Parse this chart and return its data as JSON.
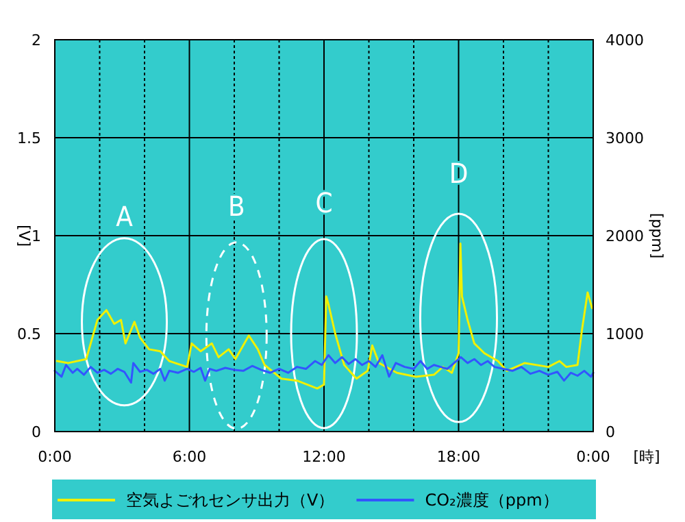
{
  "chart_data": {
    "type": "line",
    "xlabel": "[時]",
    "ylabel": "[V]",
    "y2label": "[ppm]",
    "xlim": [
      0,
      24
    ],
    "xticks": [
      {
        "value": 0,
        "label": "0:00"
      },
      {
        "value": 2,
        "label": null
      },
      {
        "value": 4,
        "label": null
      },
      {
        "value": 6,
        "label": "6:00"
      },
      {
        "value": 8,
        "label": null
      },
      {
        "value": 10,
        "label": null
      },
      {
        "value": 12,
        "label": "12:00"
      },
      {
        "value": 14,
        "label": null
      },
      {
        "value": 16,
        "label": null
      },
      {
        "value": 18,
        "label": "18:00"
      },
      {
        "value": 20,
        "label": null
      },
      {
        "value": 22,
        "label": null
      },
      {
        "value": 24,
        "label": "0:00"
      }
    ],
    "ylim": [
      0,
      2
    ],
    "yticks": [
      0,
      0.5,
      1,
      1.5,
      2
    ],
    "y2lim": [
      0,
      4000
    ],
    "y2ticks": [
      0,
      1000,
      2000,
      3000,
      4000
    ],
    "grid": true,
    "legend": "bottom",
    "annotations": [
      "A",
      "B",
      "C",
      "D"
    ],
    "series": [
      {
        "name": "空気よごれセンサ出力（V）",
        "color": "#f0f000",
        "x": [
          0.1,
          0.6,
          1.4,
          1.9,
          2.3,
          2.65,
          2.95,
          3.15,
          3.55,
          3.8,
          4.2,
          4.7,
          5.1,
          5.9,
          6.1,
          6.5,
          7.0,
          7.3,
          7.75,
          8.05,
          8.65,
          9.05,
          9.35,
          10.1,
          10.8,
          11.7,
          12.0,
          12.1,
          12.2,
          12.5,
          12.9,
          13.45,
          13.95,
          14.15,
          14.45,
          15.25,
          16.1,
          16.9,
          17.3,
          17.7,
          18.0,
          18.08,
          18.15,
          18.4,
          18.7,
          19.15,
          19.75,
          20.15,
          20.95,
          22.0,
          22.5,
          22.8,
          23.3,
          23.5,
          23.75,
          23.95
        ],
        "values": [
          0.36,
          0.35,
          0.37,
          0.57,
          0.62,
          0.55,
          0.57,
          0.45,
          0.56,
          0.48,
          0.42,
          0.41,
          0.36,
          0.33,
          0.45,
          0.41,
          0.45,
          0.38,
          0.42,
          0.37,
          0.49,
          0.42,
          0.34,
          0.27,
          0.26,
          0.22,
          0.24,
          0.69,
          0.65,
          0.5,
          0.34,
          0.27,
          0.31,
          0.44,
          0.35,
          0.3,
          0.28,
          0.29,
          0.33,
          0.3,
          0.4,
          0.96,
          0.69,
          0.57,
          0.45,
          0.4,
          0.36,
          0.31,
          0.35,
          0.33,
          0.36,
          0.33,
          0.34,
          0.52,
          0.71,
          0.63
        ]
      },
      {
        "name": "CO₂濃度（ppm）",
        "color": "#3355ff",
        "axis": "y2",
        "x": [
          0,
          0.3,
          0.5,
          0.8,
          1.0,
          1.3,
          1.6,
          1.9,
          2.2,
          2.5,
          2.8,
          3.1,
          3.4,
          3.5,
          3.8,
          4.1,
          4.4,
          4.7,
          4.9,
          5.1,
          5.5,
          5.9,
          6.2,
          6.5,
          6.7,
          6.9,
          7.2,
          7.6,
          8.0,
          8.4,
          8.8,
          9.2,
          9.6,
          10.0,
          10.4,
          10.8,
          11.2,
          11.6,
          11.9,
          12.2,
          12.5,
          12.8,
          13.1,
          13.4,
          13.7,
          14.0,
          14.3,
          14.6,
          14.9,
          15.2,
          15.6,
          16.0,
          16.3,
          16.6,
          16.9,
          17.2,
          17.5,
          17.8,
          18.1,
          18.4,
          18.7,
          19.0,
          19.3,
          19.6,
          20.0,
          20.4,
          20.8,
          21.2,
          21.6,
          22.0,
          22.4,
          22.7,
          23.0,
          23.3,
          23.6,
          23.9,
          24
        ],
        "values": [
          620,
          560,
          680,
          600,
          640,
          580,
          660,
          600,
          630,
          590,
          640,
          610,
          500,
          700,
          610,
          630,
          590,
          640,
          520,
          620,
          600,
          640,
          610,
          650,
          520,
          640,
          620,
          650,
          630,
          620,
          670,
          630,
          600,
          640,
          600,
          660,
          640,
          720,
          680,
          780,
          700,
          760,
          690,
          740,
          680,
          720,
          660,
          780,
          560,
          700,
          660,
          640,
          720,
          640,
          680,
          660,
          640,
          700,
          760,
          700,
          740,
          680,
          720,
          660,
          640,
          620,
          660,
          590,
          620,
          580,
          610,
          520,
          600,
          570,
          620,
          560,
          600
        ]
      }
    ]
  }
}
